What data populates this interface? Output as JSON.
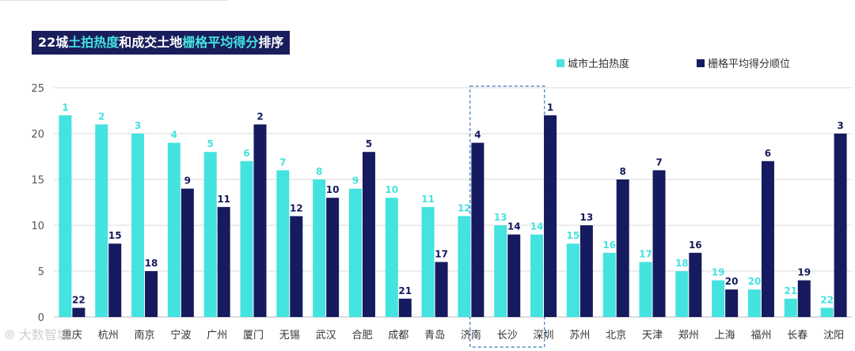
{
  "title": {
    "part1": "22城",
    "part2": "土拍热度",
    "part3": "和成交土地",
    "part4": "栅格平均得分",
    "part5": "排序"
  },
  "watermark": "⦾ 大数智城",
  "colors": {
    "series1": "#44e3df",
    "series2": "#161a5e",
    "highlight": "#3a7bbf"
  },
  "chart_data": {
    "type": "bar",
    "categories": [
      "重庆",
      "杭州",
      "南京",
      "宁波",
      "广州",
      "厦门",
      "无锡",
      "武汉",
      "合肥",
      "成都",
      "青岛",
      "济南",
      "长沙",
      "深圳",
      "苏州",
      "北京",
      "天津",
      "郑州",
      "上海",
      "福州",
      "长春",
      "沈阳"
    ],
    "series": [
      {
        "name": "城市土拍热度",
        "values": [
          22,
          21,
          20,
          19,
          18,
          17,
          16,
          15,
          14,
          13,
          12,
          11,
          10,
          9,
          8,
          7,
          6,
          5,
          4,
          3,
          2,
          1
        ],
        "labels": [
          "1",
          "2",
          "3",
          "4",
          "5",
          "6",
          "7",
          "8",
          "9",
          "10",
          "11",
          "12",
          "13",
          "14",
          "15",
          "16",
          "17",
          "18",
          "19",
          "20",
          "21",
          "22"
        ]
      },
      {
        "name": "栅格平均得分顺位",
        "values": [
          1,
          8,
          5,
          14,
          12,
          21,
          11,
          13,
          18,
          2,
          6,
          19,
          9,
          22,
          10,
          15,
          16,
          7,
          3,
          17,
          4,
          20
        ],
        "labels": [
          "22",
          "15",
          "18",
          "9",
          "11",
          "2",
          "12",
          "10",
          "5",
          "21",
          "17",
          "4",
          "14",
          "1",
          "13",
          "8",
          "7",
          "16",
          "20",
          "6",
          "19",
          "3"
        ]
      }
    ],
    "highlight_category": "长沙",
    "ylim": [
      0,
      25
    ],
    "yticks": [
      0,
      5,
      10,
      15,
      20,
      25
    ],
    "legend_position": "top-right",
    "grid": true
  }
}
